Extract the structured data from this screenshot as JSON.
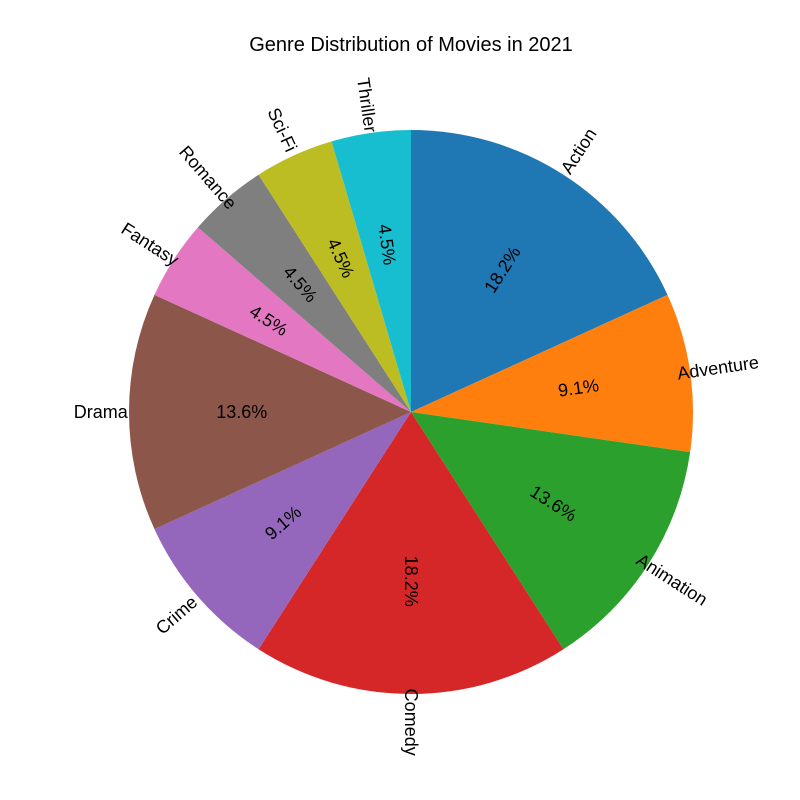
{
  "chart_data": {
    "type": "pie",
    "title": "Genre Distribution of Movies in 2021",
    "categories": [
      "Action",
      "Adventure",
      "Animation",
      "Comedy",
      "Crime",
      "Drama",
      "Fantasy",
      "Romance",
      "Sci-Fi",
      "Thriller"
    ],
    "values": [
      4,
      2,
      3,
      4,
      2,
      3,
      1,
      1,
      1,
      1
    ],
    "percent_labels": [
      "18.2%",
      "9.1%",
      "13.6%",
      "18.2%",
      "9.1%",
      "13.6%",
      "4.5%",
      "4.5%",
      "4.5%",
      "4.5%"
    ],
    "colors": [
      "#1f77b4",
      "#ff7f0e",
      "#2ca02c",
      "#d62728",
      "#9467bd",
      "#8c564b",
      "#e377c2",
      "#7f7f7f",
      "#bcbd22",
      "#17becf"
    ],
    "start": "top",
    "direction": "clockwise",
    "legend": "none"
  }
}
